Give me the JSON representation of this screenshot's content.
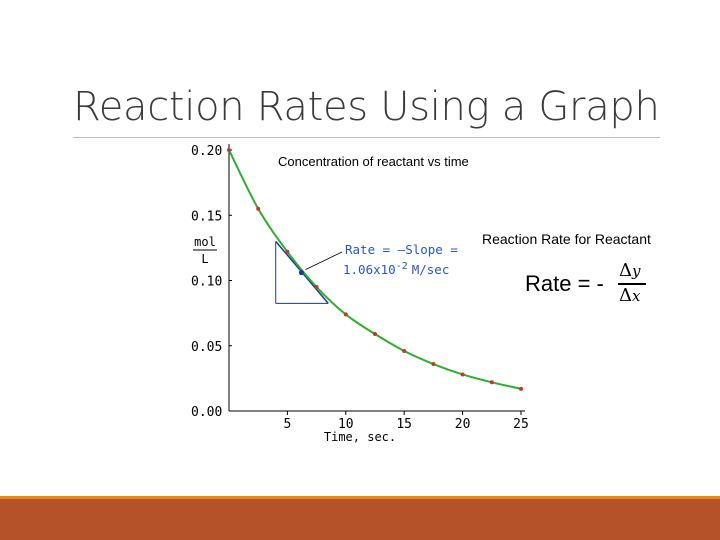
{
  "slide": {
    "title": "Reaction Rates Using a Graph",
    "side_heading": "Reaction Rate for Reactant",
    "formula": {
      "left": "Rate = -",
      "numerator_delta": "Δ",
      "numerator_var": "y",
      "denominator_delta": "Δ",
      "denominator_var": "x"
    }
  },
  "colors": {
    "curve": "#2fae2f",
    "points": "#c0392b",
    "tangent": "#1a3a9a",
    "annotation": "#2a55c8",
    "footer": "#b5522a",
    "footer_stripe": "#e8861f"
  },
  "chart_data": {
    "type": "line",
    "title": "Concentration of reactant vs time",
    "xlabel": "Time, sec.",
    "ylabel_numerator": "mol",
    "ylabel_denominator": "L",
    "xlim": [
      0,
      25
    ],
    "ylim": [
      0,
      0.2
    ],
    "x_ticks": [
      5,
      10,
      15,
      20,
      25
    ],
    "x_tick_labels": [
      "5",
      "10",
      "15",
      "20",
      "25"
    ],
    "y_ticks": [
      0,
      0.05,
      0.1,
      0.15,
      0.2
    ],
    "y_tick_labels": [
      "0.00",
      "0.05",
      "0.10",
      "0.15",
      "0.20"
    ],
    "grid": false,
    "series": [
      {
        "x": [
          0,
          2.5,
          5,
          7.5,
          10,
          12.5,
          15,
          17.5,
          20,
          22.5,
          25
        ],
        "y": [
          0.2,
          0.155,
          0.122,
          0.095,
          0.074,
          0.059,
          0.046,
          0.036,
          0.028,
          0.022,
          0.017
        ]
      }
    ],
    "tangent_point": {
      "x": 6.2,
      "y": 0.106
    },
    "tangent": {
      "x": [
        4,
        8.5
      ],
      "y": [
        0.13,
        0.0825
      ]
    },
    "slope_triangle": {
      "x_start": 4,
      "x_end": 8.5,
      "y_top": 0.13,
      "y_bottom": 0.0825
    },
    "annotation": {
      "line1": "Rate = –Slope =",
      "line2_value": "1.06x10",
      "line2_exponent": "-2",
      "line2_units": "M/sec"
    }
  }
}
